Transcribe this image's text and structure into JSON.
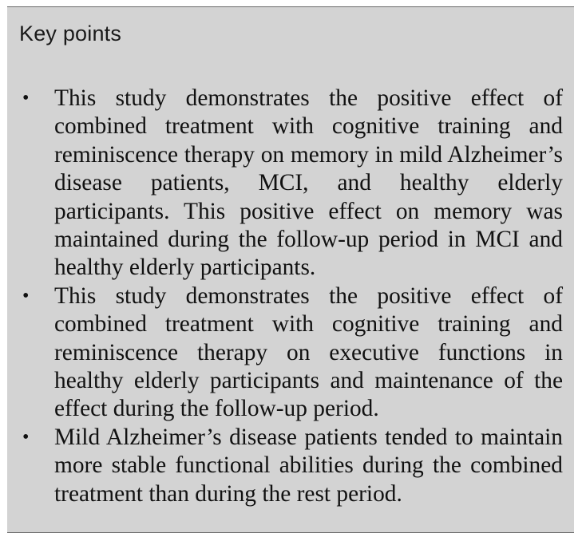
{
  "panel": {
    "title": "Key points",
    "points": [
      "This study demonstrates the positive effect of combined treatment with cognitive training and reminiscence therapy on memory in mild Alzheimer’s disease patients, MCI, and healthy elderly participants. This positive effect on memory was maintained during the follow-up period in MCI and healthy elderly participants.",
      "This study demonstrates the positive effect of combined treatment with cognitive training and reminiscence therapy on executive functions in healthy elderly participants and maintenance of the effect during the follow-up period.",
      "Mild Alzheimer’s disease patients tended to maintain more stable functional abilities during the combined treatment than during the rest period."
    ]
  }
}
